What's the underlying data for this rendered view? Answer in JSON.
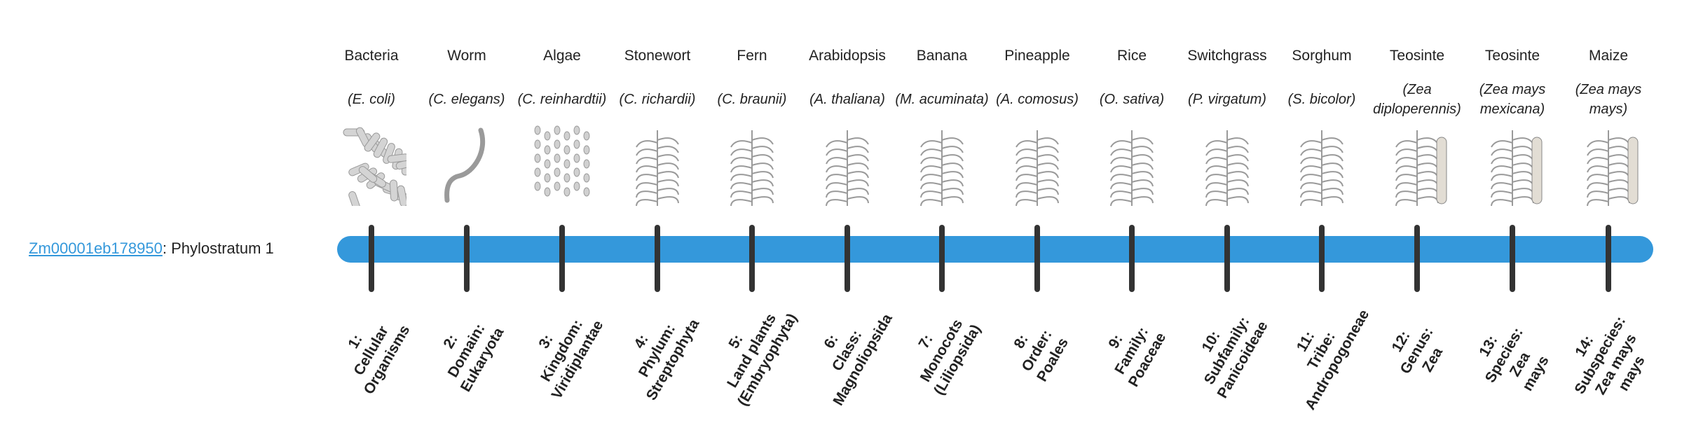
{
  "gene": {
    "id": "Zm00001eb178950",
    "separator": ": ",
    "phylostratum": "Phylostratum 1"
  },
  "colors": {
    "bar": "#3498db",
    "tick": "#333333",
    "link": "#3498db"
  },
  "columns": [
    {
      "common": "Bacteria",
      "species": "(E. coli)",
      "icon": "bacteria-illustration",
      "stratum": [
        "1:",
        "Cellular",
        "Organisms"
      ]
    },
    {
      "common": "Worm",
      "species": "(C. elegans)",
      "icon": "worm-illustration",
      "stratum": [
        "2:",
        "Domain:",
        "Eukaryota"
      ]
    },
    {
      "common": "Algae",
      "species": "(C. reinhardtii)",
      "icon": "algae-illustration",
      "stratum": [
        "3:",
        "Kingdom:",
        "Viridiplantae"
      ]
    },
    {
      "common": "Stonewort",
      "species": "(C. richardii)",
      "icon": "stonewort-illustration",
      "stratum": [
        "4:",
        "Phylum:",
        "Streptophyta"
      ]
    },
    {
      "common": "Fern",
      "species": "(C. braunii)",
      "icon": "fern-illustration",
      "stratum": [
        "5:",
        "Land plants",
        "(Embryophyta)"
      ]
    },
    {
      "common": "Arabidopsis",
      "species": "(A. thaliana)",
      "icon": "arabidopsis-illustration",
      "stratum": [
        "6:",
        "Class:",
        "Magnoliopsida"
      ]
    },
    {
      "common": "Banana",
      "species": "(M. acuminata)",
      "icon": "banana-illustration",
      "stratum": [
        "7:",
        "Monocots",
        "(Liliopsida)"
      ]
    },
    {
      "common": "Pineapple",
      "species": "(A. comosus)",
      "icon": "pineapple-illustration",
      "stratum": [
        "8:",
        "Order:",
        "Poales"
      ]
    },
    {
      "common": "Rice",
      "species": "(O. sativa)",
      "icon": "rice-illustration",
      "stratum": [
        "9:",
        "Family:",
        "Poaceae"
      ]
    },
    {
      "common": "Switchgrass",
      "species": "(P. virgatum)",
      "icon": "switchgrass-illustration",
      "stratum": [
        "10:",
        "Subfamily:",
        "Panicoideae"
      ]
    },
    {
      "common": "Sorghum",
      "species": "(S. bicolor)",
      "icon": "sorghum-illustration",
      "stratum": [
        "11:",
        "Tribe:",
        "Andropogoneae"
      ]
    },
    {
      "common": "Teosinte",
      "species": "(Zea diploperennis)",
      "icon": "teosinte-illustration",
      "stratum": [
        "12:",
        "Genus:",
        "Zea"
      ]
    },
    {
      "common": "Teosinte",
      "species": "(Zea mays mexicana)",
      "icon": "teosinte-mexicana-illustration",
      "stratum": [
        "13:",
        "Species:",
        "Zea",
        "mays"
      ]
    },
    {
      "common": "Maize",
      "species": "(Zea mays mays)",
      "icon": "maize-illustration",
      "stratum": [
        "14:",
        "Subspecies:",
        "Zea mays",
        "mays"
      ]
    }
  ]
}
